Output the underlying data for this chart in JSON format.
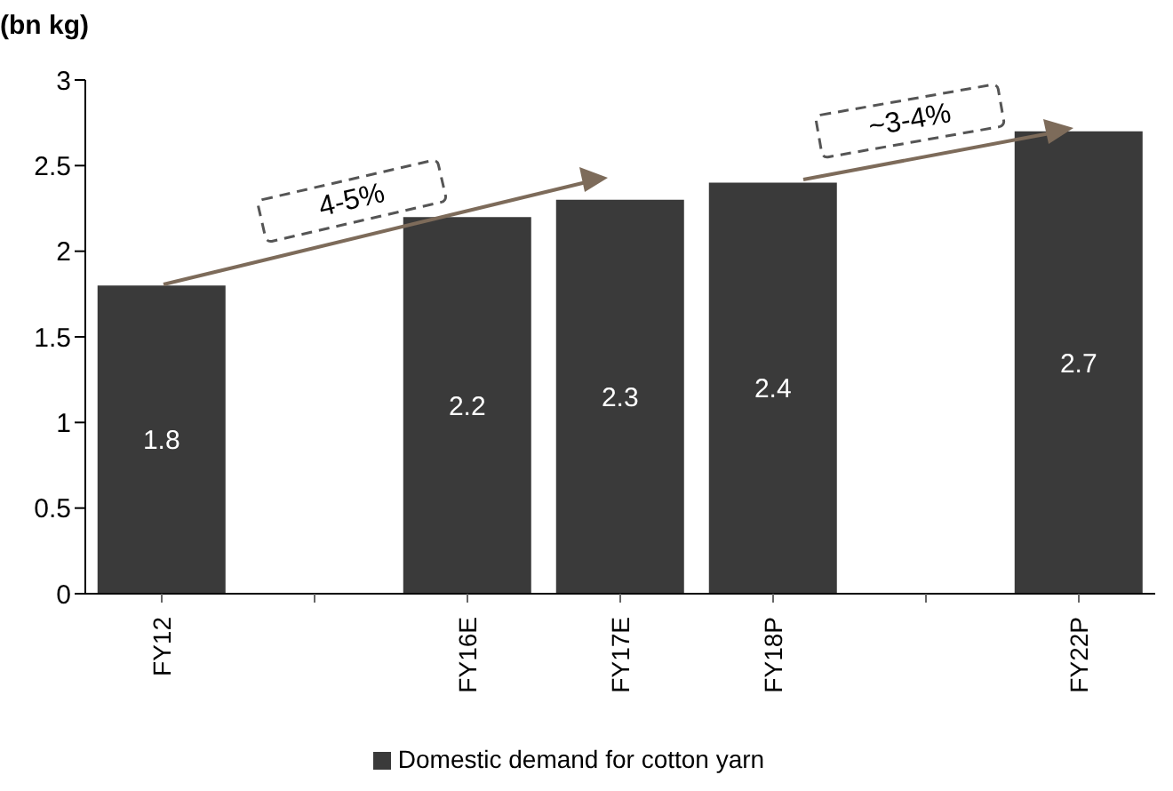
{
  "chart_data": {
    "type": "bar",
    "ylabel": "(bn kg)",
    "categories": [
      "FY12",
      null,
      "FY16E",
      "FY17E",
      "FY18P",
      null,
      "FY22P"
    ],
    "series": [
      {
        "name": "Domestic demand for cotton yarn",
        "color": "#3a3a3a",
        "values": [
          1.8,
          null,
          2.2,
          2.3,
          2.4,
          null,
          2.7
        ]
      }
    ],
    "ylim": [
      0,
      3
    ],
    "yticks": [
      0,
      0.5,
      1,
      1.5,
      2,
      2.5,
      3
    ],
    "legend": "bottom",
    "data_labels": true,
    "annotations": [
      "4-5%",
      "~3-4%"
    ]
  }
}
